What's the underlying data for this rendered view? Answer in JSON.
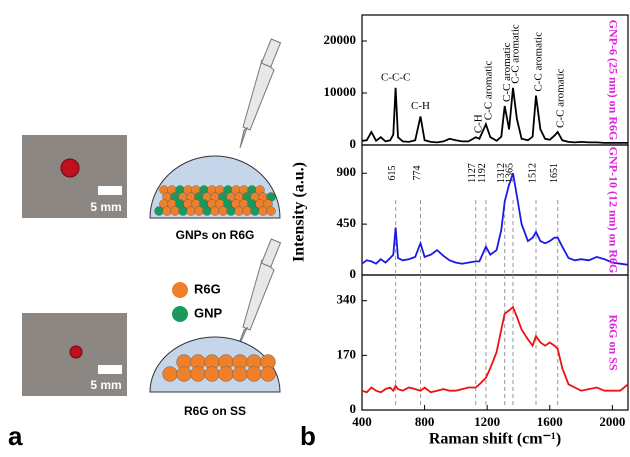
{
  "figure": {
    "panel_a": {
      "label": "a",
      "photo_scales": [
        "5 mm",
        "5 mm"
      ],
      "captions": [
        "GNPs on R6G",
        "R6G on SS"
      ],
      "legend": [
        {
          "name": "R6G",
          "color": "#f07f2a"
        },
        {
          "name": "GNP",
          "color": "#1a9a5a"
        }
      ]
    },
    "panel_b": {
      "label": "b",
      "x_label": "Raman shift (cm⁻¹)",
      "y_label": "Intensity (a.u.)",
      "side_label_color": "#e020e0",
      "peak_positions": [
        615,
        774,
        1127,
        1192,
        1312,
        1365,
        1512,
        1651
      ]
    }
  },
  "chart_data": [
    {
      "type": "line",
      "label": "GNP-6 (25 nm) on R6G",
      "color": "#000000",
      "x": [
        400,
        430,
        460,
        490,
        520,
        550,
        580,
        600,
        615,
        630,
        660,
        700,
        740,
        774,
        800,
        840,
        880,
        920,
        960,
        1000,
        1040,
        1080,
        1127,
        1150,
        1192,
        1220,
        1260,
        1290,
        1312,
        1340,
        1365,
        1390,
        1420,
        1460,
        1490,
        1512,
        1540,
        1570,
        1600,
        1630,
        1651,
        1680,
        1720,
        1760,
        1800,
        1850,
        1900,
        1950,
        2000,
        2050,
        2100
      ],
      "values": [
        800,
        900,
        2500,
        800,
        1500,
        700,
        900,
        2000,
        11000,
        1500,
        700,
        600,
        900,
        5500,
        900,
        600,
        500,
        700,
        1200,
        900,
        700,
        700,
        1500,
        1200,
        4000,
        1500,
        800,
        1600,
        7500,
        3000,
        11000,
        5000,
        1200,
        900,
        1600,
        9500,
        3000,
        1200,
        1000,
        1800,
        2500,
        900,
        600,
        500,
        600,
        500,
        500,
        400,
        400,
        400,
        400
      ],
      "xlim": [
        400,
        2100
      ],
      "ylim": [
        0,
        25000
      ],
      "yticks": [
        0,
        10000,
        20000
      ],
      "annotations": [
        {
          "text": "C-C-C",
          "x": 615
        },
        {
          "text": "C-H",
          "x": 774
        },
        {
          "text": "C-H",
          "x": 1127
        },
        {
          "text": "C-C aromatic",
          "x": 1192
        },
        {
          "text": "C-C aromatic",
          "x": 1312
        },
        {
          "text": "C-C aromatic",
          "x": 1365
        },
        {
          "text": "C-C aromatic",
          "x": 1512
        },
        {
          "text": "C-C aromatic",
          "x": 1651
        }
      ]
    },
    {
      "type": "line",
      "label": "GNP-10 (12 nm) on R6G",
      "color": "#1a1ae6",
      "x": [
        400,
        430,
        460,
        490,
        520,
        550,
        580,
        600,
        615,
        630,
        660,
        700,
        740,
        774,
        800,
        840,
        880,
        920,
        960,
        1000,
        1040,
        1080,
        1127,
        1150,
        1192,
        1220,
        1260,
        1290,
        1312,
        1340,
        1365,
        1390,
        1420,
        1460,
        1490,
        1512,
        1540,
        1570,
        1600,
        1630,
        1651,
        1680,
        1720,
        1760,
        1800,
        1850,
        1900,
        1950,
        2000,
        2050,
        2100
      ],
      "values": [
        100,
        130,
        120,
        100,
        140,
        110,
        150,
        180,
        420,
        150,
        130,
        140,
        160,
        280,
        160,
        180,
        220,
        170,
        130,
        110,
        100,
        110,
        120,
        120,
        250,
        180,
        220,
        400,
        650,
        800,
        900,
        700,
        450,
        300,
        330,
        380,
        300,
        280,
        300,
        330,
        330,
        250,
        150,
        130,
        140,
        130,
        160,
        140,
        110,
        100,
        90
      ],
      "xlim": [
        400,
        2100
      ],
      "ylim": [
        0,
        1150
      ],
      "yticks": [
        0,
        450,
        900
      ]
    },
    {
      "type": "line",
      "label": "R6G on SS",
      "color": "#ee1111",
      "x": [
        400,
        430,
        460,
        490,
        520,
        550,
        580,
        600,
        615,
        630,
        660,
        700,
        740,
        774,
        800,
        840,
        880,
        920,
        960,
        1000,
        1040,
        1080,
        1127,
        1150,
        1192,
        1220,
        1260,
        1290,
        1312,
        1340,
        1365,
        1390,
        1420,
        1460,
        1490,
        1512,
        1540,
        1570,
        1600,
        1630,
        1651,
        1680,
        1720,
        1760,
        1800,
        1850,
        1900,
        1950,
        2000,
        2050,
        2100
      ],
      "values": [
        60,
        55,
        70,
        60,
        55,
        65,
        70,
        60,
        75,
        65,
        60,
        70,
        65,
        60,
        70,
        55,
        60,
        65,
        60,
        60,
        65,
        70,
        70,
        80,
        100,
        130,
        180,
        250,
        300,
        310,
        320,
        290,
        250,
        220,
        200,
        230,
        210,
        200,
        210,
        200,
        190,
        130,
        80,
        70,
        60,
        65,
        70,
        60,
        60,
        60,
        80
      ],
      "xlim": [
        400,
        2100
      ],
      "xticks": [
        400,
        800,
        1200,
        1600,
        2000
      ],
      "ylim": [
        0,
        420
      ],
      "yticks": [
        0,
        170,
        340
      ]
    }
  ]
}
